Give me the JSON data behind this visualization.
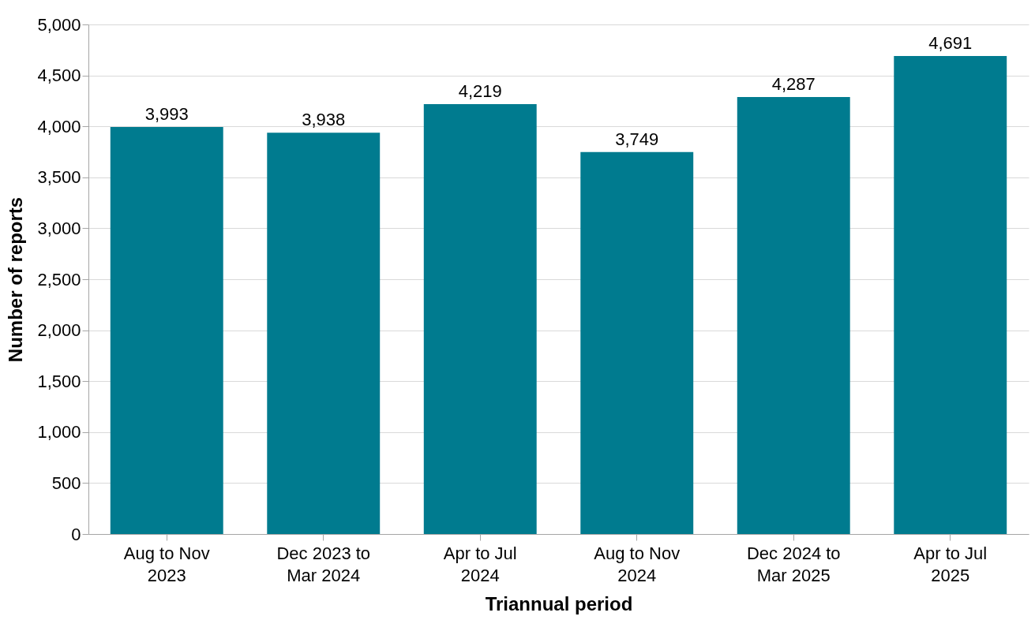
{
  "chart_data": {
    "type": "bar",
    "xlabel": "Triannual period",
    "ylabel": "Number of reports",
    "categories": [
      "Aug to Nov 2023",
      "Dec 2023 to Mar 2024",
      "Apr to Jul 2024",
      "Aug to Nov 2024",
      "Dec 2024 to Mar 2025",
      "Apr to Jul 2025"
    ],
    "values": [
      3993,
      3938,
      4219,
      3749,
      4287,
      4691
    ],
    "value_labels": [
      "3,993",
      "3,938",
      "4,219",
      "3,749",
      "4,287",
      "4,691"
    ],
    "color": "#007b8f",
    "ylim": [
      0,
      5000
    ],
    "yticks": [
      0,
      500,
      {
        "value": 1000,
        "label": "1,000"
      },
      {
        "value": 1500,
        "label": "1,500"
      },
      {
        "value": 2000,
        "label": "2,000"
      },
      {
        "value": 2500,
        "label": "2,500"
      },
      {
        "value": 3000,
        "label": "3,000"
      },
      {
        "value": 3500,
        "label": "3,500"
      },
      {
        "value": 4000,
        "label": "4,000"
      },
      {
        "value": 4500,
        "label": "4,500"
      },
      {
        "value": 5000,
        "label": "5,000"
      }
    ],
    "grid": "y"
  }
}
